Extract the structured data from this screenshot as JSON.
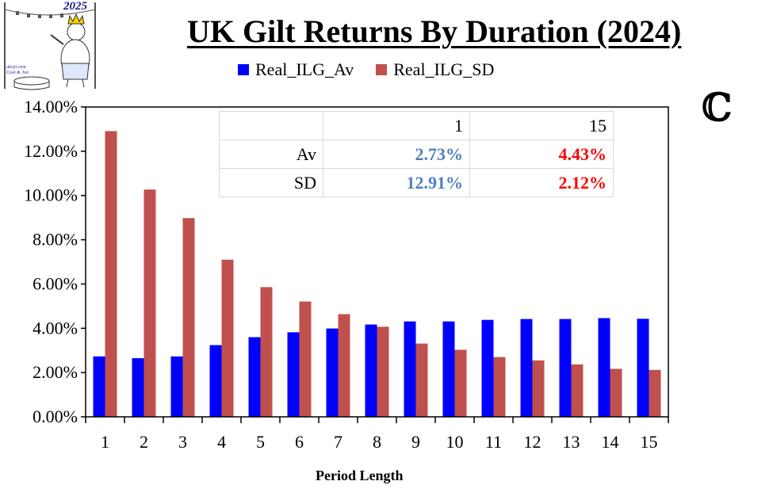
{
  "logo": {
    "year": "2025",
    "caption_line1": "ukcpi.com",
    "caption_line2": "Coot & Jon"
  },
  "copyright_symbol": "ℂ",
  "table": {
    "headers": [
      "",
      "1",
      "15"
    ],
    "rows": [
      {
        "label": "Av",
        "v1": "2.73%",
        "v15": "4.43%"
      },
      {
        "label": "SD",
        "v1": "12.91%",
        "v15": "2.12%"
      }
    ],
    "colors": {
      "v1": "#4f81bd",
      "v15": "#ff0000"
    }
  },
  "chart_data": {
    "type": "bar",
    "title": "UK Gilt Returns By Duration (2024)",
    "xlabel": "Period Length",
    "ylabel": "",
    "categories": [
      "1",
      "2",
      "3",
      "4",
      "5",
      "6",
      "7",
      "8",
      "9",
      "10",
      "11",
      "12",
      "13",
      "14",
      "15"
    ],
    "series": [
      {
        "name": "Real_ILG_Av",
        "color": "#0000ff",
        "values": [
          2.73,
          2.65,
          2.73,
          3.24,
          3.6,
          3.82,
          3.99,
          4.17,
          4.31,
          4.31,
          4.38,
          4.42,
          4.42,
          4.46,
          4.43
        ]
      },
      {
        "name": "Real_ILG_SD",
        "color": "#c0504d",
        "values": [
          12.91,
          10.27,
          8.98,
          7.1,
          5.86,
          5.21,
          4.64,
          4.07,
          3.31,
          3.03,
          2.7,
          2.55,
          2.37,
          2.17,
          2.12
        ]
      }
    ],
    "ylim": [
      0,
      14
    ],
    "yticks": [
      "0.00%",
      "2.00%",
      "4.00%",
      "6.00%",
      "8.00%",
      "10.00%",
      "12.00%",
      "14.00%"
    ],
    "ytick_values": [
      0,
      2,
      4,
      6,
      8,
      10,
      12,
      14
    ],
    "grid": false,
    "legend": "top-center"
  }
}
